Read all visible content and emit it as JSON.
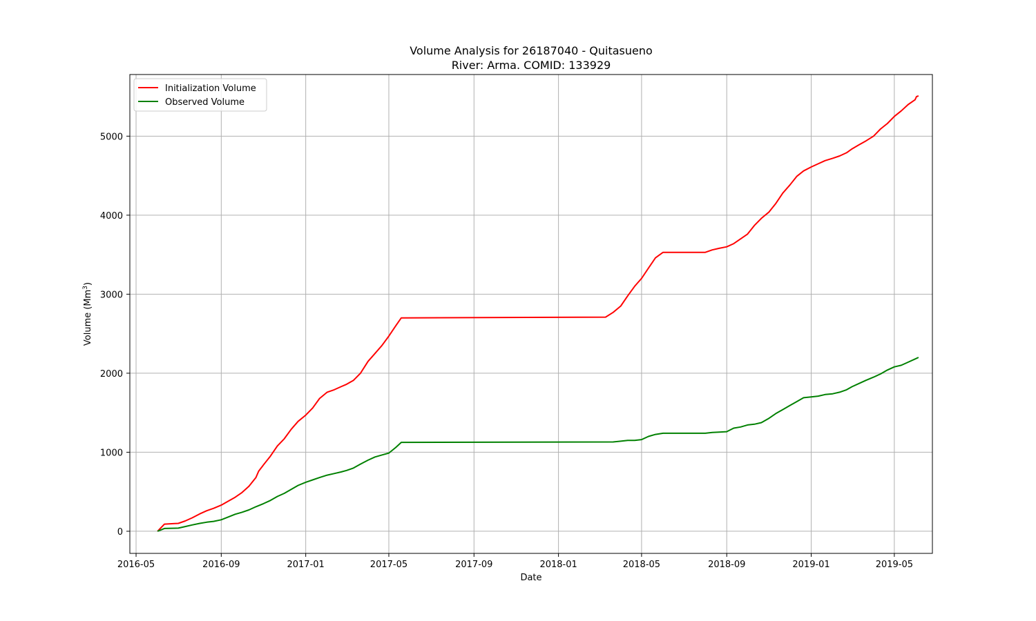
{
  "chart_data": {
    "type": "line",
    "title_line1": "Volume Analysis for 26187040 - Quitasueno",
    "title_line2": "River: Arma. COMID: 133929",
    "xlabel": "Date",
    "ylabel": "Volume (Mm",
    "ylabel_sup": "3",
    "ylabel_close": ")",
    "xlim": [
      "2016-04-22",
      "2019-06-25"
    ],
    "ylim": [
      -280,
      5780
    ],
    "x_ticks": [
      "2016-05",
      "2016-09",
      "2017-01",
      "2017-05",
      "2017-09",
      "2018-01",
      "2018-05",
      "2018-09",
      "2019-01",
      "2019-05"
    ],
    "y_ticks": [
      0,
      1000,
      2000,
      3000,
      4000,
      5000
    ],
    "grid": true,
    "legend_position": "upper-left",
    "series": [
      {
        "name": "Initialization Volume",
        "color": "#ff0000",
        "points": [
          [
            "2016-06-01",
            0
          ],
          [
            "2016-06-11",
            90
          ],
          [
            "2016-07-01",
            100
          ],
          [
            "2016-07-11",
            130
          ],
          [
            "2016-07-21",
            170
          ],
          [
            "2016-08-01",
            220
          ],
          [
            "2016-08-11",
            260
          ],
          [
            "2016-08-21",
            290
          ],
          [
            "2016-09-01",
            330
          ],
          [
            "2016-09-11",
            380
          ],
          [
            "2016-09-21",
            430
          ],
          [
            "2016-10-01",
            490
          ],
          [
            "2016-10-11",
            570
          ],
          [
            "2016-10-21",
            680
          ],
          [
            "2016-10-25",
            760
          ],
          [
            "2016-11-01",
            840
          ],
          [
            "2016-11-11",
            950
          ],
          [
            "2016-11-21",
            1080
          ],
          [
            "2016-12-01",
            1170
          ],
          [
            "2016-12-11",
            1290
          ],
          [
            "2016-12-21",
            1390
          ],
          [
            "2017-01-01",
            1470
          ],
          [
            "2017-01-11",
            1560
          ],
          [
            "2017-01-21",
            1680
          ],
          [
            "2017-02-01",
            1760
          ],
          [
            "2017-02-11",
            1790
          ],
          [
            "2017-02-21",
            1830
          ],
          [
            "2017-03-01",
            1860
          ],
          [
            "2017-03-11",
            1910
          ],
          [
            "2017-03-21",
            2000
          ],
          [
            "2017-04-01",
            2150
          ],
          [
            "2017-04-11",
            2250
          ],
          [
            "2017-04-21",
            2350
          ],
          [
            "2017-05-01",
            2470
          ],
          [
            "2017-05-11",
            2600
          ],
          [
            "2017-05-19",
            2700
          ],
          [
            "2018-03-10",
            2710
          ],
          [
            "2018-03-21",
            2770
          ],
          [
            "2018-04-01",
            2850
          ],
          [
            "2018-04-11",
            2980
          ],
          [
            "2018-04-21",
            3100
          ],
          [
            "2018-05-01",
            3200
          ],
          [
            "2018-05-11",
            3330
          ],
          [
            "2018-05-21",
            3460
          ],
          [
            "2018-06-01",
            3530
          ],
          [
            "2018-08-01",
            3530
          ],
          [
            "2018-08-11",
            3560
          ],
          [
            "2018-08-21",
            3580
          ],
          [
            "2018-09-01",
            3600
          ],
          [
            "2018-09-11",
            3640
          ],
          [
            "2018-09-21",
            3700
          ],
          [
            "2018-10-01",
            3760
          ],
          [
            "2018-10-11",
            3870
          ],
          [
            "2018-10-21",
            3960
          ],
          [
            "2018-11-01",
            4040
          ],
          [
            "2018-11-11",
            4150
          ],
          [
            "2018-11-21",
            4280
          ],
          [
            "2018-12-01",
            4380
          ],
          [
            "2018-12-11",
            4490
          ],
          [
            "2018-12-21",
            4560
          ],
          [
            "2019-01-01",
            4610
          ],
          [
            "2019-01-11",
            4650
          ],
          [
            "2019-01-21",
            4690
          ],
          [
            "2019-02-01",
            4720
          ],
          [
            "2019-02-11",
            4750
          ],
          [
            "2019-02-21",
            4790
          ],
          [
            "2019-03-01",
            4840
          ],
          [
            "2019-03-11",
            4890
          ],
          [
            "2019-03-21",
            4940
          ],
          [
            "2019-04-01",
            5000
          ],
          [
            "2019-04-11",
            5090
          ],
          [
            "2019-04-21",
            5160
          ],
          [
            "2019-05-01",
            5250
          ],
          [
            "2019-05-11",
            5320
          ],
          [
            "2019-05-21",
            5400
          ],
          [
            "2019-05-31",
            5460
          ],
          [
            "2019-06-02",
            5500
          ],
          [
            "2019-06-05",
            5510
          ]
        ]
      },
      {
        "name": "Observed Volume",
        "color": "#008000",
        "points": [
          [
            "2016-06-01",
            0
          ],
          [
            "2016-06-11",
            35
          ],
          [
            "2016-07-01",
            40
          ],
          [
            "2016-07-11",
            60
          ],
          [
            "2016-07-21",
            80
          ],
          [
            "2016-08-01",
            100
          ],
          [
            "2016-08-11",
            115
          ],
          [
            "2016-08-21",
            125
          ],
          [
            "2016-09-01",
            145
          ],
          [
            "2016-09-11",
            180
          ],
          [
            "2016-09-21",
            215
          ],
          [
            "2016-10-01",
            240
          ],
          [
            "2016-10-11",
            270
          ],
          [
            "2016-10-21",
            310
          ],
          [
            "2016-11-01",
            350
          ],
          [
            "2016-11-11",
            390
          ],
          [
            "2016-11-21",
            440
          ],
          [
            "2016-12-01",
            480
          ],
          [
            "2016-12-11",
            530
          ],
          [
            "2016-12-21",
            580
          ],
          [
            "2017-01-01",
            620
          ],
          [
            "2017-01-11",
            650
          ],
          [
            "2017-01-21",
            680
          ],
          [
            "2017-02-01",
            710
          ],
          [
            "2017-02-11",
            730
          ],
          [
            "2017-02-21",
            750
          ],
          [
            "2017-03-01",
            770
          ],
          [
            "2017-03-11",
            800
          ],
          [
            "2017-03-21",
            850
          ],
          [
            "2017-04-01",
            900
          ],
          [
            "2017-04-11",
            940
          ],
          [
            "2017-04-21",
            965
          ],
          [
            "2017-05-01",
            990
          ],
          [
            "2017-05-11",
            1060
          ],
          [
            "2017-05-19",
            1125
          ],
          [
            "2018-03-21",
            1130
          ],
          [
            "2018-04-01",
            1140
          ],
          [
            "2018-04-11",
            1150
          ],
          [
            "2018-04-21",
            1150
          ],
          [
            "2018-05-01",
            1160
          ],
          [
            "2018-05-11",
            1200
          ],
          [
            "2018-05-21",
            1225
          ],
          [
            "2018-06-01",
            1240
          ],
          [
            "2018-08-01",
            1240
          ],
          [
            "2018-08-11",
            1250
          ],
          [
            "2018-08-21",
            1255
          ],
          [
            "2018-09-01",
            1260
          ],
          [
            "2018-09-11",
            1305
          ],
          [
            "2018-09-21",
            1320
          ],
          [
            "2018-10-01",
            1345
          ],
          [
            "2018-10-11",
            1355
          ],
          [
            "2018-10-21",
            1375
          ],
          [
            "2018-11-01",
            1430
          ],
          [
            "2018-11-11",
            1490
          ],
          [
            "2018-11-21",
            1540
          ],
          [
            "2018-12-01",
            1590
          ],
          [
            "2018-12-11",
            1640
          ],
          [
            "2018-12-21",
            1690
          ],
          [
            "2019-01-01",
            1700
          ],
          [
            "2019-01-11",
            1710
          ],
          [
            "2019-01-21",
            1730
          ],
          [
            "2019-02-01",
            1740
          ],
          [
            "2019-02-11",
            1760
          ],
          [
            "2019-02-21",
            1790
          ],
          [
            "2019-03-01",
            1830
          ],
          [
            "2019-03-11",
            1870
          ],
          [
            "2019-03-21",
            1910
          ],
          [
            "2019-04-01",
            1950
          ],
          [
            "2019-04-11",
            1990
          ],
          [
            "2019-04-21",
            2040
          ],
          [
            "2019-05-01",
            2080
          ],
          [
            "2019-05-11",
            2100
          ],
          [
            "2019-05-21",
            2140
          ],
          [
            "2019-05-31",
            2180
          ],
          [
            "2019-06-05",
            2200
          ]
        ]
      }
    ]
  }
}
